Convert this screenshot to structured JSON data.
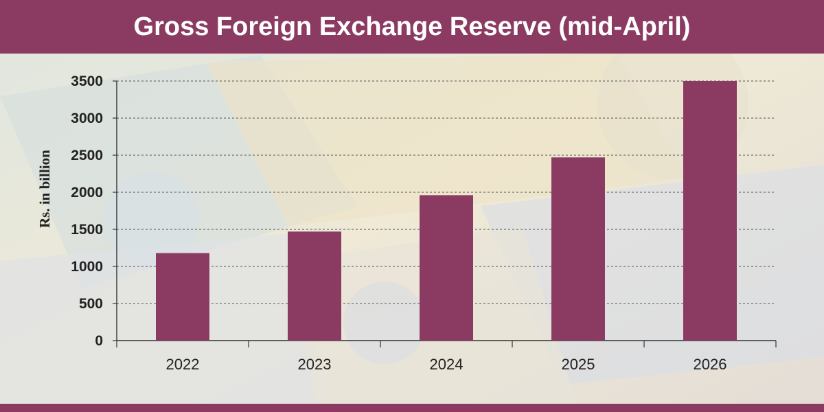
{
  "header": {
    "title": "Gross Foreign Exchange Reserve (mid-April)"
  },
  "colors": {
    "brand": "#8b3a62",
    "gridline": "#6f6f6f",
    "axis": "#333333",
    "text": "#222222"
  },
  "chart_data": {
    "type": "bar",
    "title": "Gross Foreign Exchange Reserve (mid-April)",
    "xlabel": "",
    "ylabel": "Rs. in billion",
    "categories": [
      "2022",
      "2023",
      "2024",
      "2025",
      "2026"
    ],
    "values": [
      1180,
      1470,
      1960,
      2470,
      3500
    ],
    "ylim": [
      0,
      3500
    ],
    "yticks": [
      0,
      500,
      1000,
      1500,
      2000,
      2500,
      3000,
      3500
    ],
    "grid": true,
    "legend": "none"
  }
}
